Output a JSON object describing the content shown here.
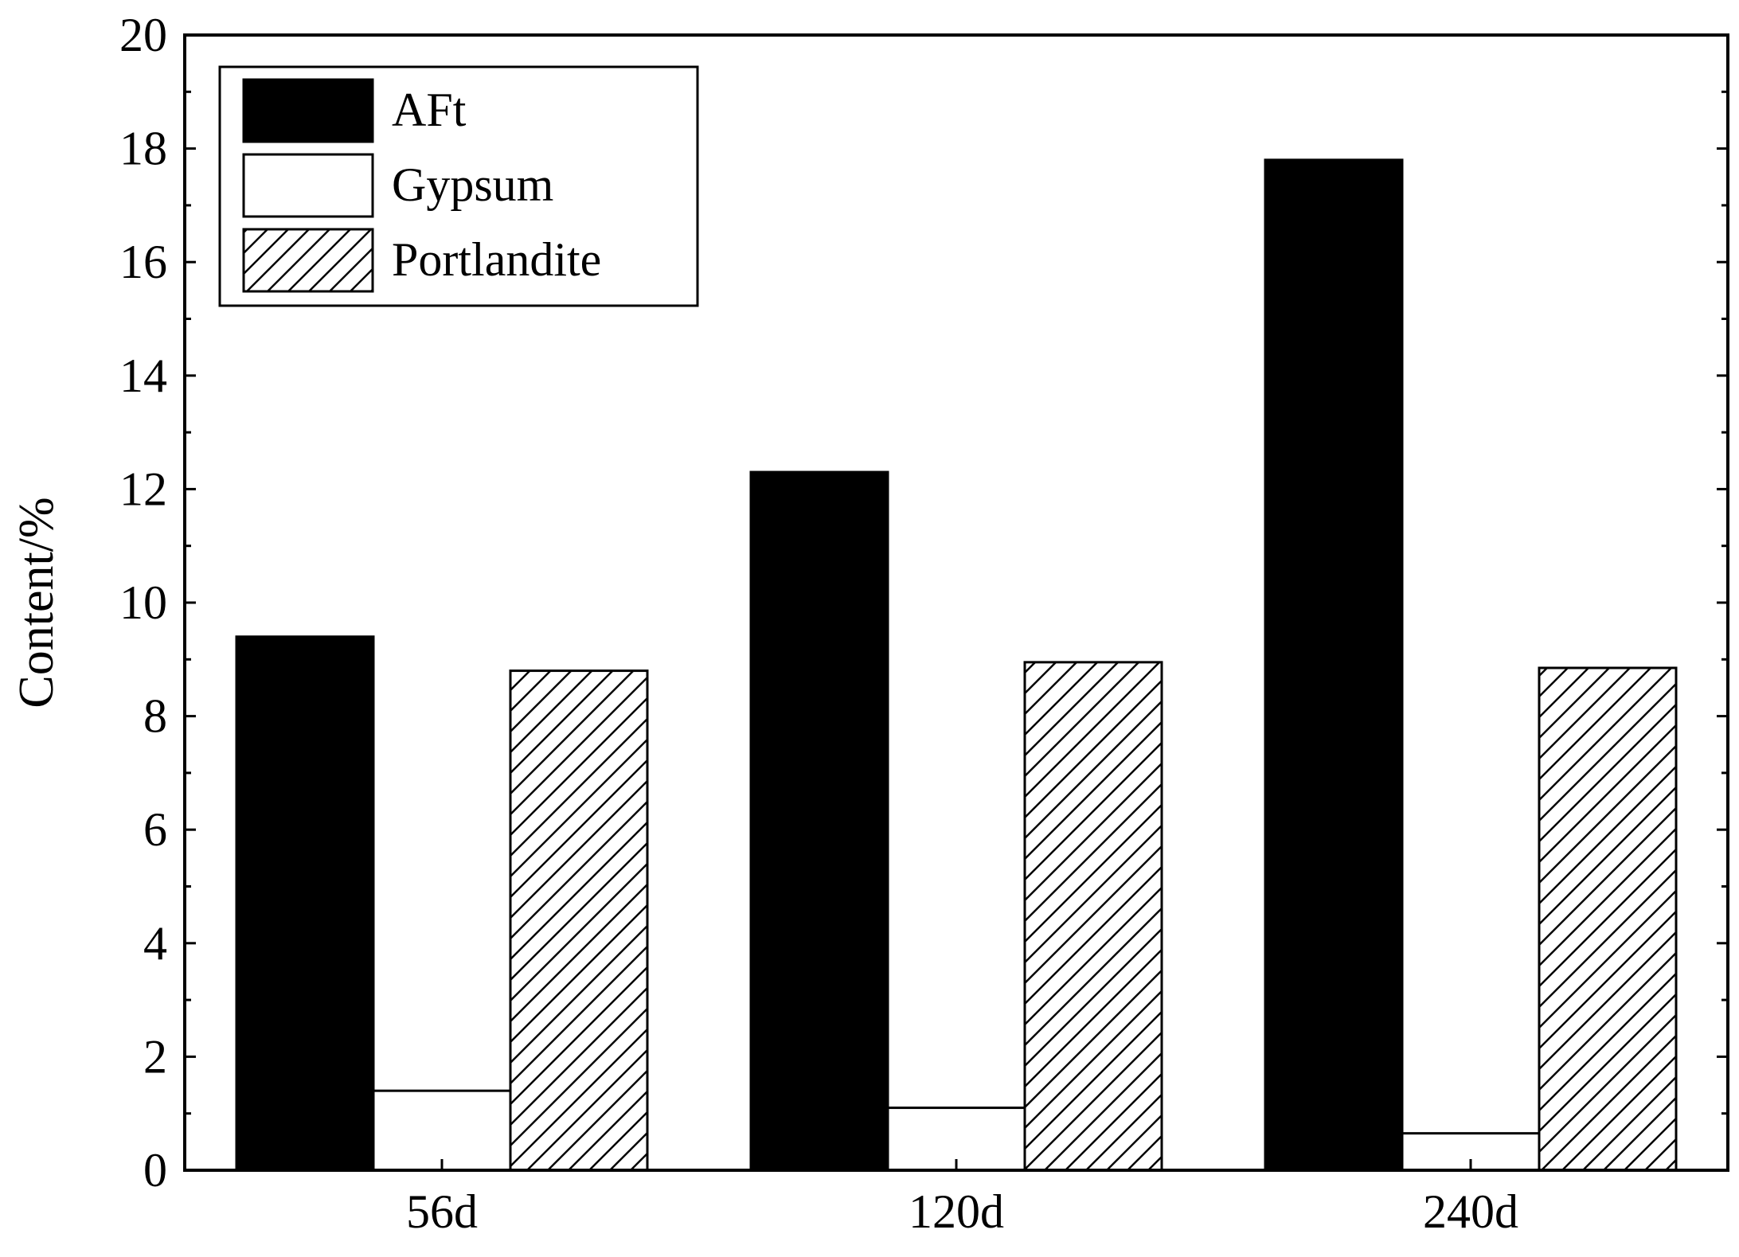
{
  "chart_data": {
    "type": "bar",
    "categories": [
      "56d",
      "120d",
      "240d"
    ],
    "series": [
      {
        "name": "AFt",
        "values": [
          9.4,
          12.3,
          17.8
        ],
        "fill": "#000000",
        "pattern": "solid"
      },
      {
        "name": "Gypsum",
        "values": [
          1.4,
          1.1,
          0.65
        ],
        "fill": "#ffffff",
        "pattern": "none"
      },
      {
        "name": "Portlandite",
        "values": [
          8.8,
          8.95,
          8.85
        ],
        "fill": "#ffffff",
        "pattern": "diagonal-hatch"
      }
    ],
    "title": "",
    "xlabel": "",
    "ylabel": "Content/%",
    "ylim": [
      0,
      20
    ],
    "yticks": [
      "0",
      "2",
      "4",
      "6",
      "8",
      "10",
      "12",
      "14",
      "16",
      "18",
      "20"
    ],
    "yticks_values": [
      0,
      2,
      4,
      6,
      8,
      10,
      12,
      14,
      16,
      18,
      20
    ],
    "grid": false,
    "legend_position": "top-left"
  }
}
